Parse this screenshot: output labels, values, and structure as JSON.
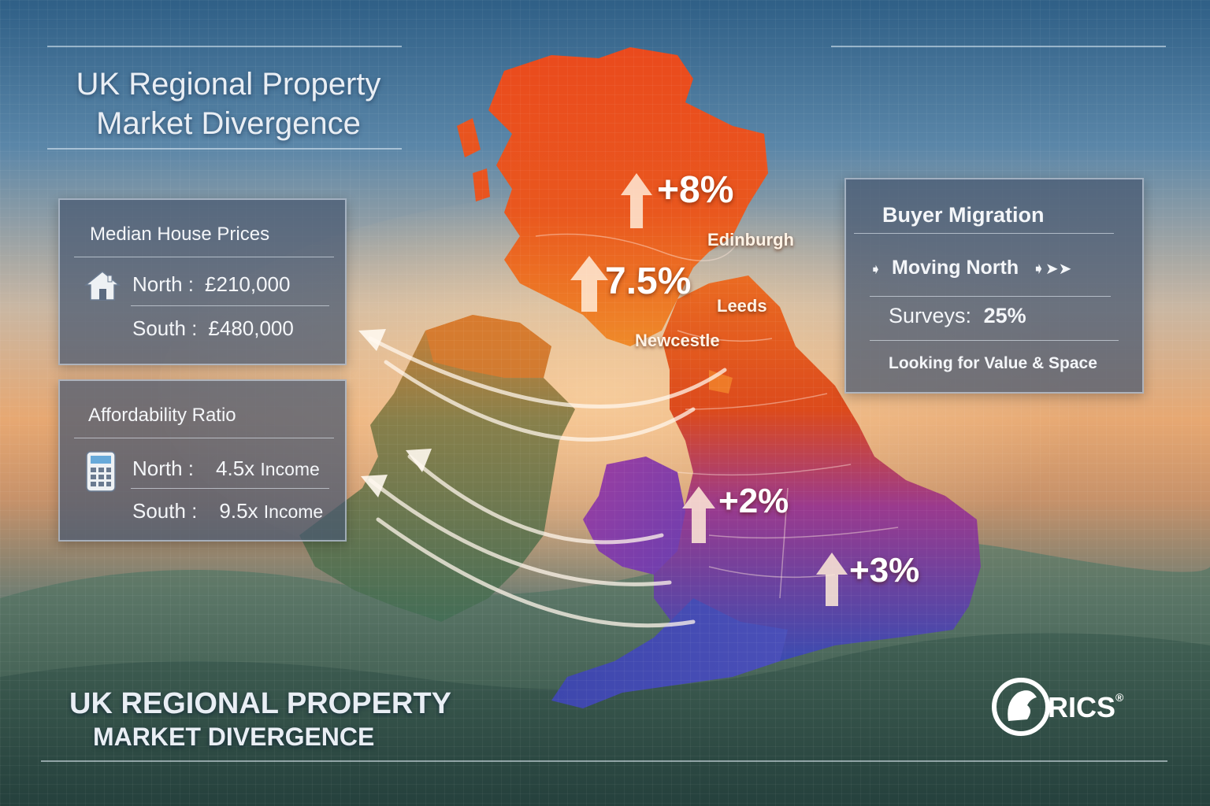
{
  "title_top": {
    "line1": "UK Regional Property",
    "line2": "Market Divergence"
  },
  "title_bottom": {
    "line1": "UK REGIONAL PROPERTY",
    "line2": "MARKET DIVERGENCE"
  },
  "median_prices": {
    "heading": "Median House Prices",
    "icon": "house-icon",
    "rows": [
      {
        "label": "North :",
        "value": "£210,000"
      },
      {
        "label": "South :",
        "value": "£480,000"
      }
    ]
  },
  "affordability": {
    "heading": "Affordability Ratio",
    "icon": "calculator-icon",
    "rows": [
      {
        "label": "North :",
        "value": "4.5x",
        "unit": "Income"
      },
      {
        "label": "South :",
        "value": "9.5x",
        "unit": "Income"
      }
    ]
  },
  "migration": {
    "heading": "Buyer Migration",
    "moving": "Moving North",
    "surveys_label": "Surveys:",
    "surveys_value": "25%",
    "note": "Looking for Value & Space"
  },
  "map_labels": {
    "scotland_ne": "+8%",
    "scotland_central": "7.5%",
    "midlands": "+2%",
    "south_east": "+3%"
  },
  "cities": [
    "Edinburgh",
    "Leeds",
    "Newcestle"
  ],
  "logo": {
    "text": "RICS",
    "mark": "®"
  },
  "colors": {
    "north": "#e8501f",
    "midlands": "#8a3fa6",
    "south": "#3d4fb0",
    "ireland": "#4f7357"
  }
}
